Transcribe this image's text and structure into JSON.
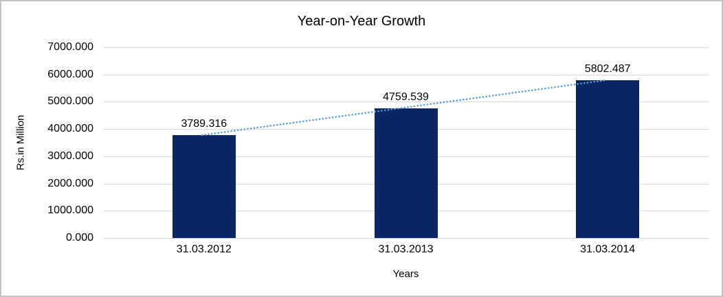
{
  "frame": {
    "background": "#FFFFFF",
    "border_color": "#C3C3C3"
  },
  "chart_data": {
    "type": "bar",
    "title": "Year-on-Year Growth",
    "xlabel": "Years",
    "ylabel": "Rs.in Million",
    "categories": [
      "31.03.2012",
      "31.03.2013",
      "31.03.2014"
    ],
    "values": [
      3789.316,
      4759.539,
      5802.487
    ],
    "data_labels": [
      "3789.316",
      "4759.539",
      "5802.487"
    ],
    "ylim": [
      0,
      7000
    ],
    "ytick_interval": 1000,
    "ytick_labels": [
      "0.000",
      "1000.000",
      "2000.000",
      "3000.000",
      "4000.000",
      "5000.000",
      "6000.000",
      "7000.000"
    ],
    "grid": true,
    "legend": "none",
    "colors": {
      "bar": "#0A2663",
      "gridline": "#D9D9D9",
      "text": "#000000",
      "trendline": "#5B9BD5"
    },
    "trendline": {
      "type": "linear",
      "style": "dotted",
      "color": "#5B9BD5"
    }
  }
}
